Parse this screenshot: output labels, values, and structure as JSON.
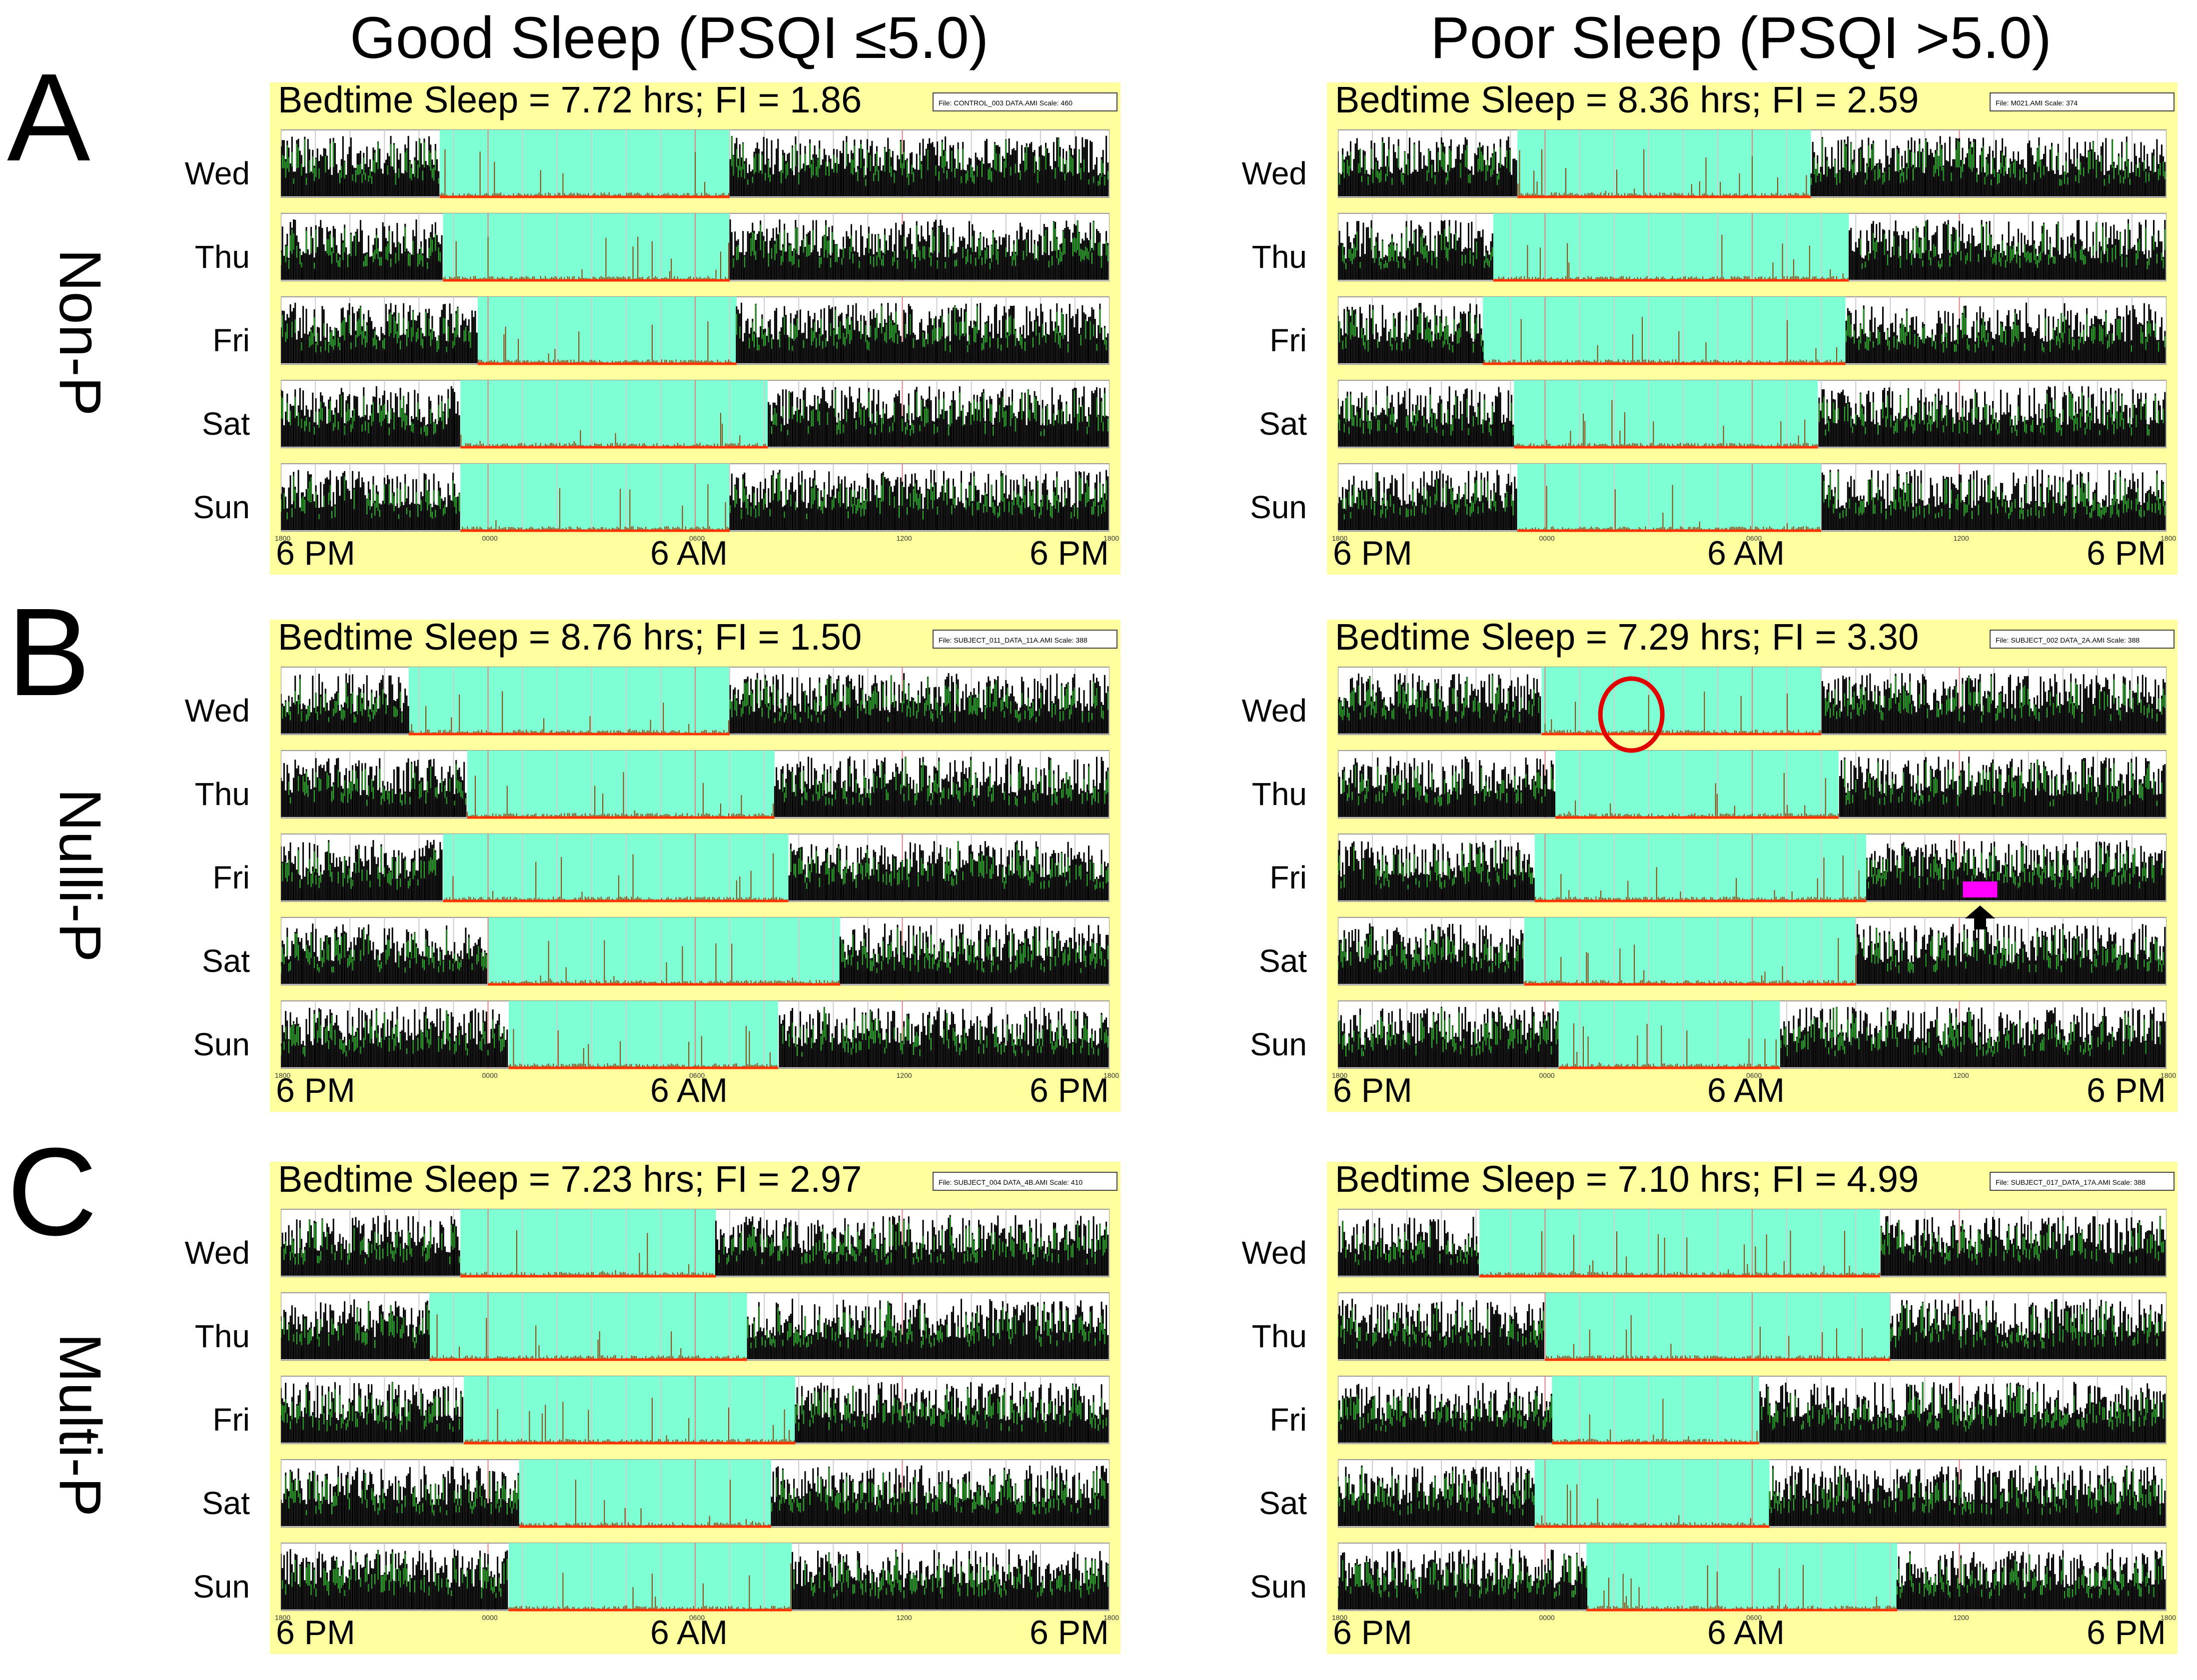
{
  "columns": [
    "Good Sleep (PSQI ≤5.0)",
    "Poor Sleep (PSQI >5.0)"
  ],
  "rows": [
    {
      "letter": "A",
      "label": "Non-P"
    },
    {
      "letter": "B",
      "label": "Nulli-P"
    },
    {
      "letter": "C",
      "label": "Multi-P"
    }
  ],
  "days": [
    "Wed",
    "Thu",
    "Fri",
    "Sat",
    "Sun"
  ],
  "time_labels": [
    "6 PM",
    "6 AM",
    "6 PM"
  ],
  "small_ticks": [
    "1800",
    "0000",
    "0600",
    "1200",
    "1800"
  ],
  "colors": {
    "background": "#ffffa0",
    "sleep_band": "#7fffd4",
    "activity": "#000000",
    "activity_highlight": "#22aa22",
    "baseline": "#ff3300",
    "annotation_circle": "#e00000",
    "annotation_bar": "#ff00ff"
  },
  "chart_data": [
    {
      "type": "actogram",
      "row": "A",
      "column": "Good Sleep",
      "stat_text": "Bedtime Sleep = 7.72 hrs; FI = 1.86",
      "bedtime_sleep_hrs": 7.72,
      "fragmentation_index": 1.86,
      "file_box": "File: CONTROL_003 DATA.AMI   Scale: 460",
      "sleep_intervals_hours_from_1800": [
        [
          4.6,
          13.0
        ],
        [
          4.7,
          13.0
        ],
        [
          5.7,
          13.2
        ],
        [
          5.2,
          14.1
        ],
        [
          5.2,
          13.0
        ]
      ]
    },
    {
      "type": "actogram",
      "row": "A",
      "column": "Poor Sleep",
      "stat_text": "Bedtime Sleep = 8.36 hrs; FI = 2.59",
      "bedtime_sleep_hrs": 8.36,
      "fragmentation_index": 2.59,
      "file_box": "File: M021.AMI   Scale: 374",
      "sleep_intervals_hours_from_1800": [
        [
          5.2,
          13.7
        ],
        [
          4.5,
          14.8
        ],
        [
          4.2,
          14.7
        ],
        [
          5.1,
          13.9
        ],
        [
          5.2,
          14.0
        ]
      ]
    },
    {
      "type": "actogram",
      "row": "B",
      "column": "Good Sleep",
      "stat_text": "Bedtime Sleep = 8.76 hrs; FI = 1.50",
      "bedtime_sleep_hrs": 8.76,
      "fragmentation_index": 1.5,
      "file_box": "File: SUBJECT_011_DATA_11A.AMI   Scale: 388",
      "sleep_intervals_hours_from_1800": [
        [
          3.7,
          13.0
        ],
        [
          5.4,
          14.3
        ],
        [
          4.7,
          14.7
        ],
        [
          6.0,
          16.2
        ],
        [
          6.6,
          14.4
        ]
      ]
    },
    {
      "type": "actogram",
      "row": "B",
      "column": "Poor Sleep",
      "stat_text": "Bedtime Sleep = 7.29 hrs; FI = 3.30",
      "bedtime_sleep_hrs": 7.29,
      "fragmentation_index": 3.3,
      "file_box": "File: SUBJECT_002 DATA_2A.AMI   Scale: 388",
      "sleep_intervals_hours_from_1800": [
        [
          5.9,
          14.0
        ],
        [
          6.3,
          14.5
        ],
        [
          5.7,
          15.3
        ],
        [
          5.4,
          15.0
        ],
        [
          6.4,
          12.8
        ]
      ]
    },
    {
      "type": "actogram",
      "row": "C",
      "column": "Good Sleep",
      "stat_text": "Bedtime Sleep = 7.23 hrs; FI = 2.97",
      "bedtime_sleep_hrs": 7.23,
      "fragmentation_index": 2.97,
      "file_box": "File: SUBJECT_004 DATA_4B.AMI   Scale: 410",
      "sleep_intervals_hours_from_1800": [
        [
          5.2,
          12.6
        ],
        [
          4.3,
          13.5
        ],
        [
          5.3,
          14.9
        ],
        [
          6.9,
          14.2
        ],
        [
          6.6,
          14.8
        ]
      ]
    },
    {
      "type": "actogram",
      "row": "C",
      "column": "Poor Sleep",
      "stat_text": "Bedtime Sleep = 7.10 hrs; FI = 4.99",
      "bedtime_sleep_hrs": 7.1,
      "fragmentation_index": 4.99,
      "file_box": "File: SUBJECT_017_DATA_17A.AMI   Scale: 388",
      "sleep_intervals_hours_from_1800": [
        [
          4.1,
          15.7
        ],
        [
          6.0,
          16.0
        ],
        [
          6.2,
          12.2
        ],
        [
          5.7,
          12.5
        ],
        [
          7.2,
          16.2
        ]
      ]
    }
  ]
}
